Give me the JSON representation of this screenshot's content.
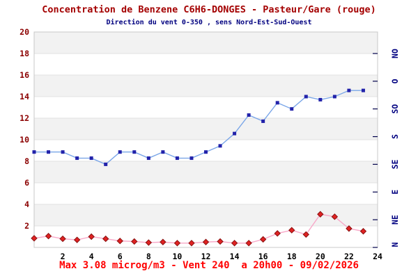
{
  "chart_data": {
    "type": "line",
    "title": "Concentration de Benzene C6H6-DONGES - Pasteur/Gare (rouge)",
    "subtitle": "Direction du vent 0-350 , sens Nord-Est-Sud-Ouest",
    "annotation": "Max 3.08 microg/m3 - Vent 240  a 20h00 - 09/02/2026",
    "x": [
      0,
      1,
      2,
      3,
      4,
      5,
      6,
      7,
      8,
      9,
      10,
      11,
      12,
      13,
      14,
      15,
      16,
      17,
      18,
      19,
      20,
      21,
      22,
      23
    ],
    "x_axis": {
      "min": 0,
      "max": 24,
      "ticks": [
        2,
        4,
        6,
        8,
        10,
        12,
        14,
        16,
        18,
        20,
        22,
        24
      ],
      "label_color": "#000000"
    },
    "left_axis": {
      "min": 0,
      "max": 20,
      "ticks": [
        2,
        4,
        6,
        8,
        10,
        12,
        14,
        16,
        18,
        20
      ],
      "label_color": "#8b0000"
    },
    "right_axis": {
      "min": 0,
      "max": 350,
      "unit": "degres",
      "labels": [
        "N",
        "NE",
        "E",
        "SE",
        "S",
        "SO",
        "O",
        "NO"
      ],
      "positions_deg": [
        0,
        45,
        90,
        135,
        180,
        225,
        270,
        315
      ],
      "label_color": "#000080"
    },
    "series": [
      {
        "name": "direction-du-vent",
        "axis": "right",
        "marker": "square",
        "line_color": "#7aa6e8",
        "marker_color": "#2222aa",
        "values": [
          155,
          155,
          155,
          145,
          145,
          135,
          155,
          155,
          145,
          155,
          145,
          145,
          155,
          165,
          185,
          215,
          205,
          235,
          225,
          245,
          240,
          245,
          255,
          255
        ]
      },
      {
        "name": "benzene-c6h6",
        "axis": "left",
        "marker": "diamond",
        "line_color": "#f8a8c8",
        "marker_color": "#e02222",
        "marker_edge": "#881111",
        "values": [
          0.85,
          1.05,
          0.8,
          0.7,
          1.0,
          0.8,
          0.6,
          0.55,
          0.45,
          0.5,
          0.4,
          0.4,
          0.5,
          0.55,
          0.4,
          0.4,
          0.75,
          1.3,
          1.6,
          1.2,
          3.08,
          2.85,
          1.75,
          1.5
        ]
      }
    ],
    "layout_hints": {
      "band_color": "#f2f2f2",
      "grid_color": "#e2e2e2",
      "border_color": "#c8c8c8",
      "grid": "on",
      "legend": "none"
    }
  }
}
